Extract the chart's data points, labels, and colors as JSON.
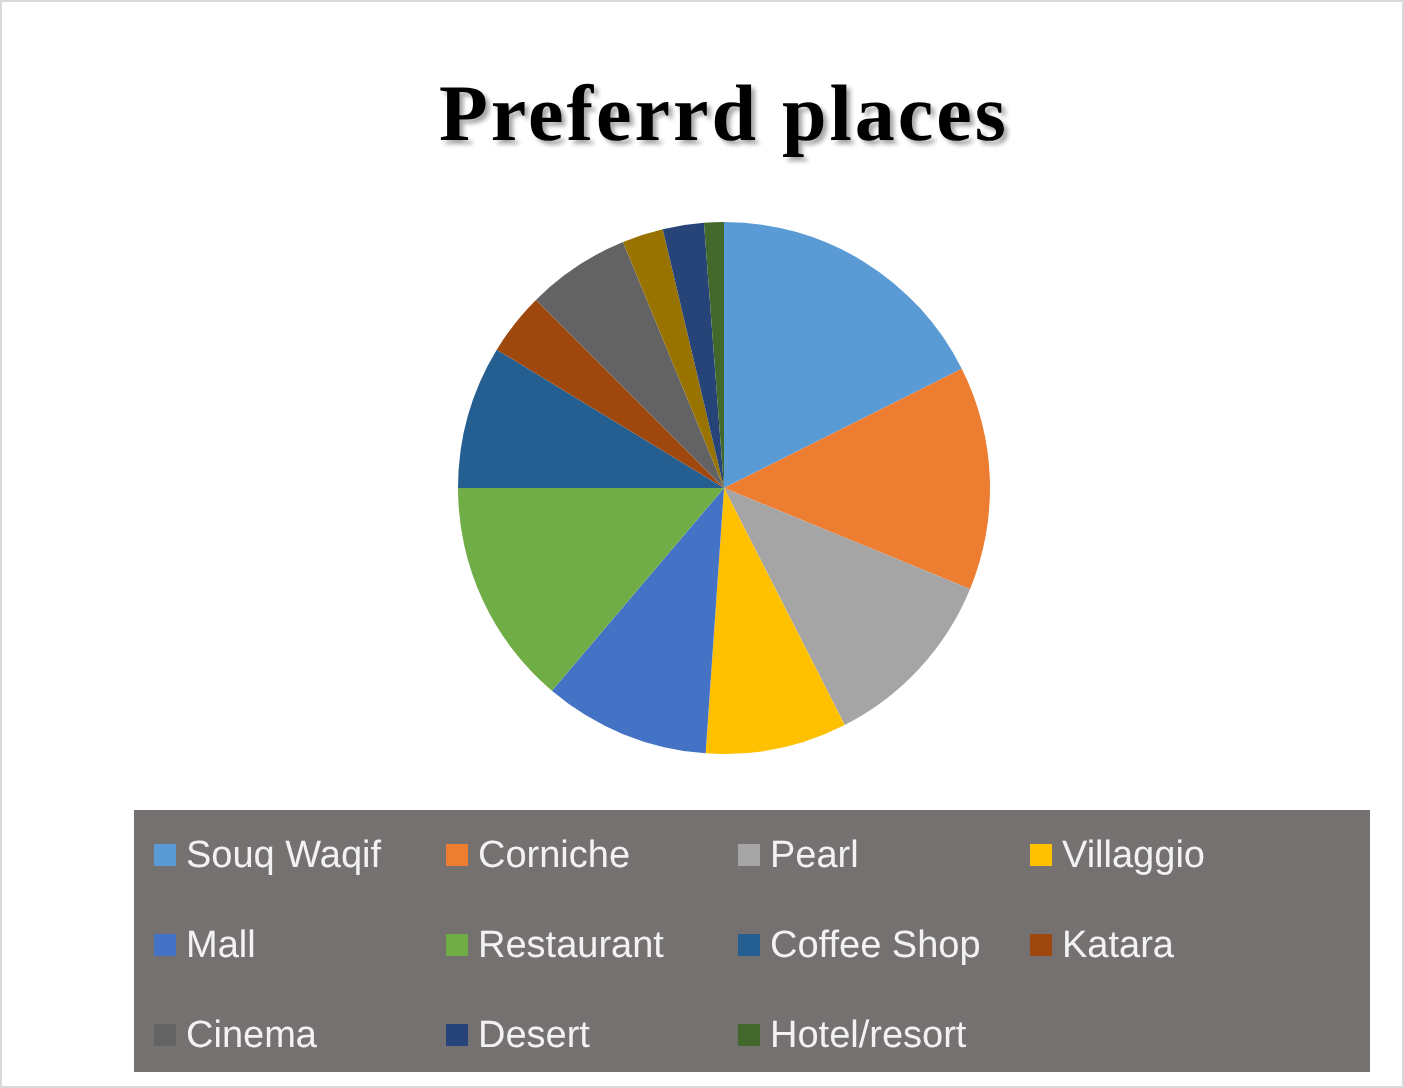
{
  "chart_data": {
    "type": "pie",
    "title": "Preferrd places",
    "categories": [
      "Souq Waqif",
      "Corniche",
      "Pearl",
      "Villaggio",
      "Mall",
      "Restaurant",
      "Coffee Shop",
      "Katara",
      "Cinema",
      null,
      "Desert",
      "Hotel/resort"
    ],
    "values": [
      17.6,
      13.6,
      11.3,
      8.6,
      10.1,
      13.8,
      8.7,
      3.8,
      6.3,
      2.5,
      2.5,
      1.2
    ],
    "colors": [
      "#5b9bd5",
      "#ed7d31",
      "#a5a5a5",
      "#ffc000",
      "#4472c4",
      "#70ad47",
      "#255e91",
      "#9e480e",
      "#636363",
      "#997300",
      "#264478",
      "#43682b"
    ],
    "legend": "bottom"
  }
}
